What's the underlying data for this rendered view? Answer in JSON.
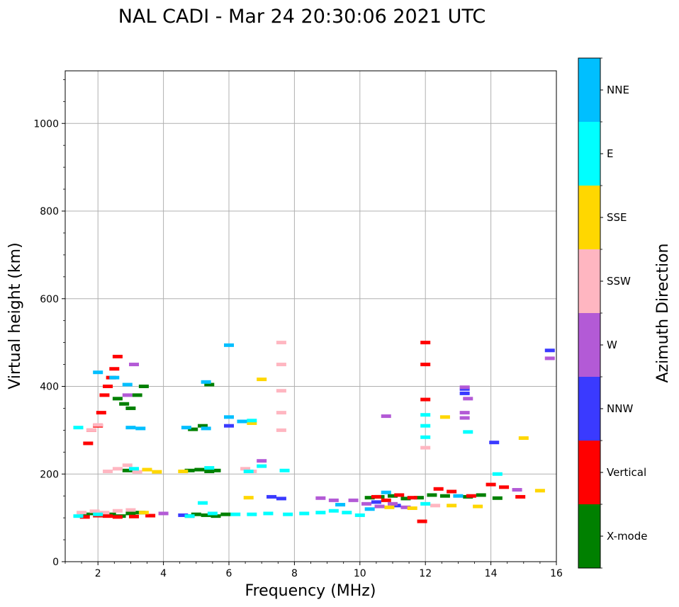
{
  "chart_data": {
    "type": "scatter",
    "title": "NAL CADI - Mar 24 20:30:06 2021 UTC",
    "xlabel": "Frequency (MHz)",
    "ylabel": "Virtual height (km)",
    "xlim": [
      1,
      16
    ],
    "ylim": [
      0,
      1120
    ],
    "xticks": [
      2,
      4,
      6,
      8,
      10,
      12,
      14,
      16
    ],
    "yticks": [
      0,
      200,
      400,
      600,
      800,
      1000
    ],
    "xtick_labels": [
      "2",
      "4",
      "6",
      "8",
      "10",
      "12",
      "14",
      "16"
    ],
    "ytick_labels": [
      "0",
      "200",
      "400",
      "600",
      "800",
      "1000"
    ],
    "grid": true,
    "colorbar": {
      "title": "Azimuth Direction",
      "categories": [
        "X-mode",
        "Vertical",
        "NNW",
        "W",
        "SSW",
        "SSE",
        "E",
        "NNE"
      ],
      "colors": [
        "#008000",
        "#ff0000",
        "#3a3aff",
        "#b35ad6",
        "#ffb6c1",
        "#ffd700",
        "#00ffff",
        "#00bfff"
      ]
    },
    "series": [
      {
        "name": "X-mode",
        "points": [
          [
            1.6,
            108
          ],
          [
            1.9,
            110
          ],
          [
            2.2,
            105
          ],
          [
            2.4,
            108
          ],
          [
            2.7,
            104
          ],
          [
            3.0,
            110
          ],
          [
            3.3,
            112
          ],
          [
            4.8,
            104
          ],
          [
            5.0,
            108
          ],
          [
            5.3,
            106
          ],
          [
            5.6,
            104
          ],
          [
            5.9,
            108
          ],
          [
            2.9,
            208
          ],
          [
            3.1,
            210
          ],
          [
            4.8,
            208
          ],
          [
            5.1,
            210
          ],
          [
            5.4,
            206
          ],
          [
            5.6,
            208
          ],
          [
            2.6,
            372
          ],
          [
            2.8,
            360
          ],
          [
            3.0,
            350
          ],
          [
            3.2,
            380
          ],
          [
            3.4,
            400
          ],
          [
            4.9,
            302
          ],
          [
            5.2,
            310
          ],
          [
            5.4,
            404
          ],
          [
            10.3,
            146
          ],
          [
            10.6,
            148
          ],
          [
            11.0,
            150
          ],
          [
            11.4,
            144
          ],
          [
            11.8,
            146
          ],
          [
            12.2,
            152
          ],
          [
            12.6,
            150
          ],
          [
            13.3,
            148
          ],
          [
            13.7,
            152
          ],
          [
            14.2,
            145
          ]
        ]
      },
      {
        "name": "Vertical",
        "points": [
          [
            1.6,
            102
          ],
          [
            2.0,
            105
          ],
          [
            2.3,
            104
          ],
          [
            2.6,
            102
          ],
          [
            3.1,
            103
          ],
          [
            3.6,
            105
          ],
          [
            1.7,
            270
          ],
          [
            1.8,
            300
          ],
          [
            2.0,
            310
          ],
          [
            2.1,
            340
          ],
          [
            2.2,
            380
          ],
          [
            2.3,
            400
          ],
          [
            2.4,
            420
          ],
          [
            2.5,
            440
          ],
          [
            2.6,
            468
          ],
          [
            10.5,
            148
          ],
          [
            10.8,
            140
          ],
          [
            11.2,
            152
          ],
          [
            11.6,
            146
          ],
          [
            11.9,
            92
          ],
          [
            12.0,
            500
          ],
          [
            12.0,
            450
          ],
          [
            12.0,
            370
          ],
          [
            12.4,
            166
          ],
          [
            12.8,
            160
          ],
          [
            13.4,
            150
          ],
          [
            14.0,
            176
          ],
          [
            14.4,
            170
          ],
          [
            14.9,
            148
          ]
        ]
      },
      {
        "name": "NNW",
        "points": [
          [
            7.3,
            148
          ],
          [
            7.6,
            144
          ],
          [
            10.5,
            136
          ],
          [
            11.1,
            128
          ],
          [
            13.2,
            394
          ],
          [
            13.2,
            384
          ],
          [
            14.1,
            272
          ],
          [
            15.8,
            482
          ],
          [
            6.0,
            310
          ],
          [
            4.6,
            106
          ]
        ]
      },
      {
        "name": "W",
        "points": [
          [
            8.8,
            145
          ],
          [
            9.2,
            140
          ],
          [
            9.8,
            140
          ],
          [
            10.2,
            132
          ],
          [
            10.6,
            126
          ],
          [
            11.0,
            132
          ],
          [
            11.4,
            124
          ],
          [
            13.2,
            398
          ],
          [
            13.3,
            372
          ],
          [
            13.2,
            340
          ],
          [
            13.2,
            328
          ],
          [
            10.8,
            332
          ],
          [
            14.8,
            164
          ],
          [
            15.8,
            464
          ],
          [
            3.1,
            450
          ],
          [
            2.9,
            380
          ],
          [
            7.0,
            230
          ],
          [
            4.0,
            110
          ]
        ]
      },
      {
        "name": "SSW",
        "points": [
          [
            1.5,
            112
          ],
          [
            1.9,
            115
          ],
          [
            2.2,
            112
          ],
          [
            2.6,
            116
          ],
          [
            3.0,
            118
          ],
          [
            1.8,
            300
          ],
          [
            2.0,
            312
          ],
          [
            2.3,
            206
          ],
          [
            2.6,
            212
          ],
          [
            2.9,
            220
          ],
          [
            3.2,
            205
          ],
          [
            6.5,
            212
          ],
          [
            6.7,
            206
          ],
          [
            7.6,
            500
          ],
          [
            7.6,
            450
          ],
          [
            7.6,
            390
          ],
          [
            7.6,
            340
          ],
          [
            7.6,
            300
          ],
          [
            12.0,
            260
          ],
          [
            12.3,
            128
          ]
        ]
      },
      {
        "name": "SSE",
        "points": [
          [
            3.5,
            210
          ],
          [
            3.8,
            205
          ],
          [
            4.6,
            206
          ],
          [
            6.7,
            316
          ],
          [
            7.0,
            416
          ],
          [
            12.6,
            330
          ],
          [
            12.8,
            128
          ],
          [
            13.6,
            126
          ],
          [
            15.0,
            282
          ],
          [
            15.5,
            162
          ],
          [
            10.9,
            124
          ],
          [
            11.6,
            122
          ],
          [
            3.4,
            112
          ],
          [
            6.6,
            146
          ]
        ]
      },
      {
        "name": "E",
        "points": [
          [
            1.4,
            104
          ],
          [
            2.0,
            108
          ],
          [
            4.8,
            104
          ],
          [
            5.2,
            134
          ],
          [
            5.5,
            110
          ],
          [
            6.2,
            108
          ],
          [
            6.7,
            108
          ],
          [
            7.2,
            110
          ],
          [
            7.8,
            108
          ],
          [
            8.3,
            110
          ],
          [
            8.8,
            112
          ],
          [
            9.2,
            116
          ],
          [
            9.6,
            112
          ],
          [
            10.0,
            106
          ],
          [
            6.6,
            206
          ],
          [
            6.7,
            322
          ],
          [
            7.0,
            218
          ],
          [
            7.7,
            208
          ],
          [
            12.0,
            335
          ],
          [
            12.0,
            310
          ],
          [
            12.0,
            284
          ],
          [
            12.0,
            132
          ],
          [
            13.3,
            296
          ],
          [
            14.2,
            200
          ],
          [
            5.4,
            214
          ],
          [
            3.1,
            212
          ],
          [
            1.4,
            306
          ]
        ]
      },
      {
        "name": "NNE",
        "points": [
          [
            2.0,
            432
          ],
          [
            2.5,
            420
          ],
          [
            2.9,
            404
          ],
          [
            3.3,
            304
          ],
          [
            3.0,
            306
          ],
          [
            4.7,
            306
          ],
          [
            5.3,
            304
          ],
          [
            5.3,
            410
          ],
          [
            6.0,
            494
          ],
          [
            6.0,
            330
          ],
          [
            6.4,
            320
          ],
          [
            9.4,
            130
          ],
          [
            10.3,
            120
          ],
          [
            10.8,
            158
          ],
          [
            13.0,
            150
          ]
        ]
      }
    ]
  }
}
